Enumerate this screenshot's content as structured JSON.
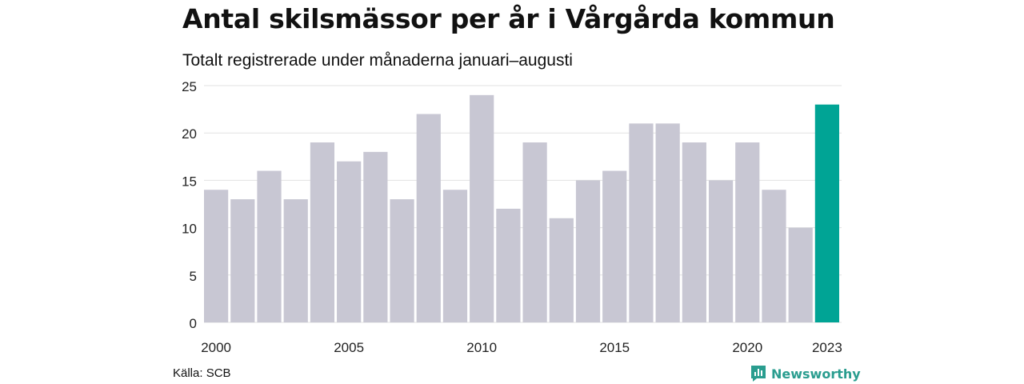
{
  "title": "Antal skilsmässor per år i Vårgårda kommun",
  "subtitle": "Totalt registrerade under månaderna januari–augusti",
  "source": "Källa: SCB",
  "brand": "Newsworthy",
  "colors": {
    "bar": "#c8c7d3",
    "highlight": "#00a495",
    "grid": "#e2e2e2",
    "brand": "#2a9d8f"
  },
  "chart_data": {
    "type": "bar",
    "title": "Antal skilsmässor per år i Vårgårda kommun",
    "subtitle": "Totalt registrerade under månaderna januari–augusti",
    "categories": [
      "2000",
      "2001",
      "2002",
      "2003",
      "2004",
      "2005",
      "2006",
      "2007",
      "2008",
      "2009",
      "2010",
      "2011",
      "2012",
      "2013",
      "2014",
      "2015",
      "2016",
      "2017",
      "2018",
      "2019",
      "2020",
      "2021",
      "2022",
      "2023"
    ],
    "values": [
      14,
      13,
      16,
      13,
      19,
      17,
      18,
      13,
      22,
      14,
      24,
      12,
      19,
      11,
      15,
      16,
      21,
      21,
      19,
      15,
      19,
      14,
      10,
      23
    ],
    "highlight": "2023",
    "x_tick_labels": [
      "2000",
      "2005",
      "2010",
      "2015",
      "2020",
      "2023"
    ],
    "y_ticks": [
      "0",
      "5",
      "10",
      "15",
      "20",
      "25"
    ],
    "ylim": [
      0,
      25
    ],
    "grid": true,
    "legend": "none"
  }
}
